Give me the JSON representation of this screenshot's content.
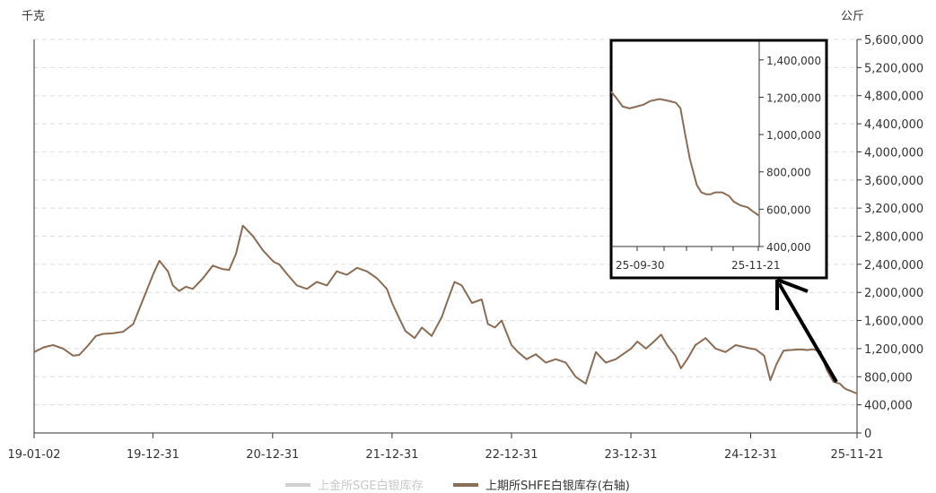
{
  "chart_data": {
    "type": "line",
    "left_unit": "千克",
    "right_unit": "公斤",
    "x_tick_labels": [
      "19-01-02",
      "19-12-31",
      "20-12-31",
      "21-12-31",
      "22-12-31",
      "23-12-31",
      "24-12-31",
      "25-11-21"
    ],
    "right_ticks": [
      "0",
      "400,000",
      "800,000",
      "1,200,000",
      "1,600,000",
      "2,000,000",
      "2,400,000",
      "2,800,000",
      "3,200,000",
      "3,600,000",
      "4,000,000",
      "4,400,000",
      "4,800,000",
      "5,200,000",
      "5,600,000"
    ],
    "ylim_right": [
      0,
      5600000
    ],
    "legend": [
      "上金所SGE白银库存",
      "上期所SHFE白银库存(右轴)"
    ],
    "legend_placement": "bottom",
    "grid": true,
    "colors": {
      "sge": "#d0d0d0",
      "shfe": "#8b6c55",
      "axis": "#333333",
      "grid": "#dddddd",
      "inset_border": "#000000"
    },
    "series": [
      {
        "name": "上期所SHFE白银库存(右轴)",
        "axis": "right",
        "x": [
          "2019-01-02",
          "2019-02-01",
          "2019-03-01",
          "2019-04-01",
          "2019-05-01",
          "2019-05-20",
          "2019-06-15",
          "2019-07-10",
          "2019-08-01",
          "2019-09-01",
          "2019-10-01",
          "2019-11-01",
          "2019-12-01",
          "2019-12-31",
          "2020-01-20",
          "2020-02-15",
          "2020-03-01",
          "2020-03-20",
          "2020-04-10",
          "2020-05-01",
          "2020-06-01",
          "2020-07-01",
          "2020-08-01",
          "2020-08-20",
          "2020-09-10",
          "2020-10-01",
          "2020-11-01",
          "2020-12-01",
          "2020-12-31",
          "2021-01-05",
          "2021-01-20",
          "2021-02-15",
          "2021-03-15",
          "2021-04-15",
          "2021-05-15",
          "2021-06-15",
          "2021-07-15",
          "2021-08-15",
          "2021-09-15",
          "2021-10-15",
          "2021-11-15",
          "2021-12-15",
          "2021-12-31",
          "2022-01-20",
          "2022-02-10",
          "2022-03-10",
          "2022-04-01",
          "2022-05-01",
          "2022-06-01",
          "2022-06-20",
          "2022-07-10",
          "2022-08-01",
          "2022-09-01",
          "2022-10-01",
          "2022-10-20",
          "2022-11-10",
          "2022-12-01",
          "2022-12-31",
          "2023-01-20",
          "2023-02-15",
          "2023-03-15",
          "2023-04-15",
          "2023-05-15",
          "2023-06-15",
          "2023-07-15",
          "2023-08-15",
          "2023-09-15",
          "2023-10-15",
          "2023-11-15",
          "2023-12-31",
          "2024-01-20",
          "2024-02-15",
          "2024-03-10",
          "2024-04-01",
          "2024-04-20",
          "2024-05-15",
          "2024-06-01",
          "2024-06-20",
          "2024-07-15",
          "2024-08-15",
          "2024-09-15",
          "2024-10-15",
          "2024-11-15",
          "2024-12-31",
          "2025-01-15",
          "2025-02-10",
          "2025-03-01",
          "2025-03-20",
          "2025-04-10",
          "2025-05-01",
          "2025-06-01",
          "2025-06-20",
          "2025-07-10",
          "2025-08-01",
          "2025-08-20",
          "2025-09-10",
          "2025-09-30",
          "2025-10-10",
          "2025-10-20",
          "2025-11-01",
          "2025-11-10",
          "2025-11-21"
        ],
        "values": [
          1150000,
          1220000,
          1250000,
          1200000,
          1100000,
          1110000,
          1240000,
          1380000,
          1410000,
          1420000,
          1440000,
          1550000,
          1900000,
          2250000,
          2450000,
          2300000,
          2100000,
          2020000,
          2080000,
          2050000,
          2200000,
          2380000,
          2330000,
          2320000,
          2550000,
          2950000,
          2800000,
          2600000,
          2450000,
          2430000,
          2400000,
          2250000,
          2100000,
          2050000,
          2150000,
          2100000,
          2300000,
          2250000,
          2350000,
          2300000,
          2200000,
          2050000,
          1850000,
          1650000,
          1450000,
          1350000,
          1500000,
          1380000,
          1650000,
          1900000,
          2150000,
          2100000,
          1850000,
          1900000,
          1550000,
          1500000,
          1600000,
          1250000,
          1150000,
          1050000,
          1120000,
          1000000,
          1050000,
          1000000,
          800000,
          700000,
          1150000,
          1000000,
          1050000,
          1200000,
          1300000,
          1200000,
          1300000,
          1400000,
          1250000,
          1100000,
          920000,
          1050000,
          1250000,
          1350000,
          1200000,
          1150000,
          1250000,
          1200000,
          1190000,
          1100000,
          750000,
          980000,
          1170000,
          1180000,
          1190000,
          1180000,
          1190000,
          1160000,
          900000,
          730000,
          700000,
          650000,
          620000,
          600000,
          580000,
          560000
        ]
      }
    ],
    "inset": {
      "x_tick_labels": [
        "25-09-30",
        "25-11-21"
      ],
      "y_ticks": [
        "400,000",
        "600,000",
        "800,000",
        "1,000,000",
        "1,200,000",
        "1,400,000"
      ],
      "ylim": [
        400000,
        1500000
      ],
      "x": [
        "2025-09-18",
        "2025-09-20",
        "2025-09-23",
        "2025-09-26",
        "2025-09-29",
        "2025-10-02",
        "2025-10-05",
        "2025-10-09",
        "2025-10-13",
        "2025-10-16",
        "2025-10-18",
        "2025-10-20",
        "2025-10-22",
        "2025-10-25",
        "2025-10-27",
        "2025-10-29",
        "2025-10-31",
        "2025-11-02",
        "2025-11-05",
        "2025-11-08",
        "2025-11-10",
        "2025-11-13",
        "2025-11-16",
        "2025-11-18",
        "2025-11-21"
      ],
      "values": [
        1230000,
        1200000,
        1150000,
        1140000,
        1150000,
        1160000,
        1180000,
        1190000,
        1180000,
        1170000,
        1140000,
        1000000,
        870000,
        730000,
        690000,
        680000,
        680000,
        690000,
        690000,
        670000,
        640000,
        620000,
        610000,
        590000,
        565000
      ]
    },
    "annotation": "arrow pointing from latest data to inset zoom"
  }
}
